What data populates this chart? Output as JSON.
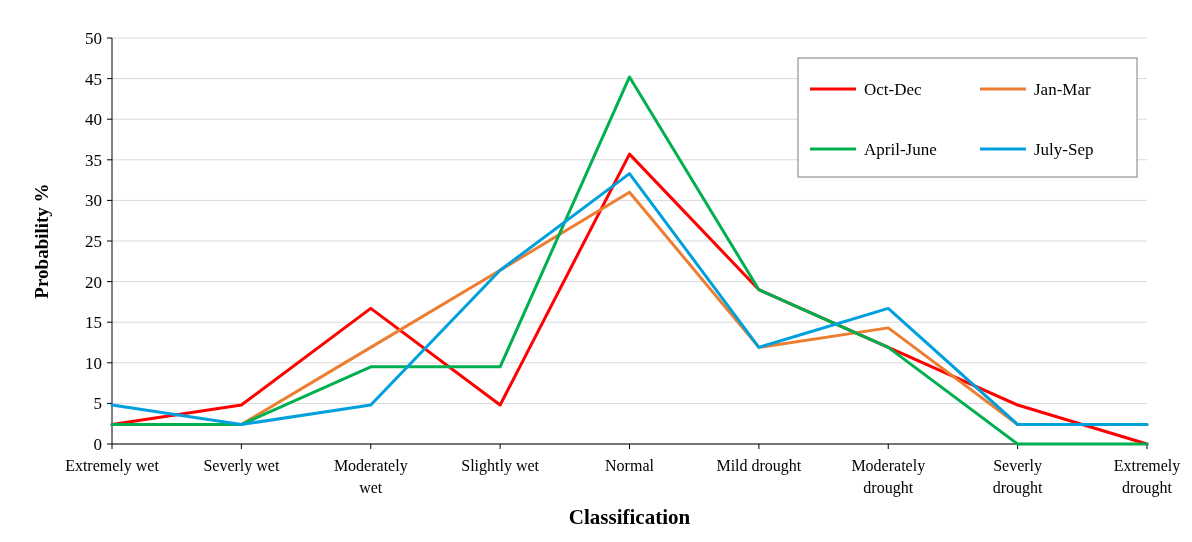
{
  "chart_data": {
    "type": "line",
    "xlabel": "Classification",
    "ylabel": "Probability %",
    "categories": [
      "Extremely wet",
      "Severly wet",
      "Moderately wet",
      "Slightly wet",
      "Normal",
      "Mild drought",
      "Moderately drought",
      "Severly drought",
      "Extremely drought"
    ],
    "series": [
      {
        "name": "Oct-Dec",
        "color": "#ff0000",
        "values": [
          2.4,
          4.8,
          16.7,
          4.8,
          35.7,
          19.0,
          11.9,
          4.8,
          0
        ]
      },
      {
        "name": "Jan-Mar",
        "color": "#ed7d31",
        "values": [
          2.4,
          2.4,
          11.9,
          21.4,
          31.0,
          11.9,
          14.3,
          2.4,
          2.4
        ]
      },
      {
        "name": "April-June",
        "color": "#00b050",
        "values": [
          2.4,
          2.4,
          9.5,
          9.5,
          45.2,
          19.0,
          11.9,
          0,
          0
        ]
      },
      {
        "name": "July-Sep",
        "color": "#00a0dc",
        "values": [
          4.8,
          2.4,
          4.8,
          21.4,
          33.3,
          11.9,
          16.7,
          2.4,
          2.4
        ]
      }
    ],
    "ylim": [
      0,
      50
    ],
    "yticks": [
      0,
      5,
      10,
      15,
      20,
      25,
      30,
      35,
      40,
      45,
      50
    ],
    "grid": "y",
    "legend": "top right",
    "marker": "none",
    "line_style": "solid"
  }
}
